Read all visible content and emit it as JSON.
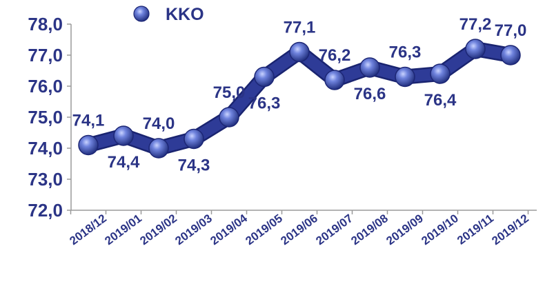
{
  "chart_data": {
    "type": "line",
    "title": "",
    "xlabel": "",
    "ylabel": "",
    "categories": [
      "2018/12",
      "2019/01",
      "2019/02",
      "2019/03",
      "2019/04",
      "2019/05",
      "2019/06",
      "2019/07",
      "2019/08",
      "2019/09",
      "2019/10",
      "2019/11",
      "2019/12"
    ],
    "series": [
      {
        "name": "KKO",
        "values": [
          74.1,
          74.4,
          74.0,
          74.3,
          75.0,
          76.3,
          77.1,
          76.2,
          76.6,
          76.3,
          76.4,
          77.2,
          77.0
        ],
        "labels": [
          "74,1",
          "74,4",
          "74,0",
          "74,3",
          "75,0",
          "76,3",
          "77,1",
          "76,2",
          "76,6",
          "76,3",
          "76,4",
          "77,2",
          "77,0"
        ]
      }
    ],
    "ylim": [
      72.0,
      78.0
    ],
    "yticks": [
      72.0,
      73.0,
      74.0,
      75.0,
      76.0,
      77.0,
      78.0
    ],
    "ytick_labels": [
      "72,0",
      "73,0",
      "74,0",
      "75,0",
      "76,0",
      "77,0",
      "78,0"
    ],
    "grid": false,
    "legend_position": "top-left",
    "colors": {
      "line": "#2e3b97",
      "marker": "#4a5fc0",
      "text": "#2b3486",
      "axis": "#9a9a9a"
    }
  }
}
